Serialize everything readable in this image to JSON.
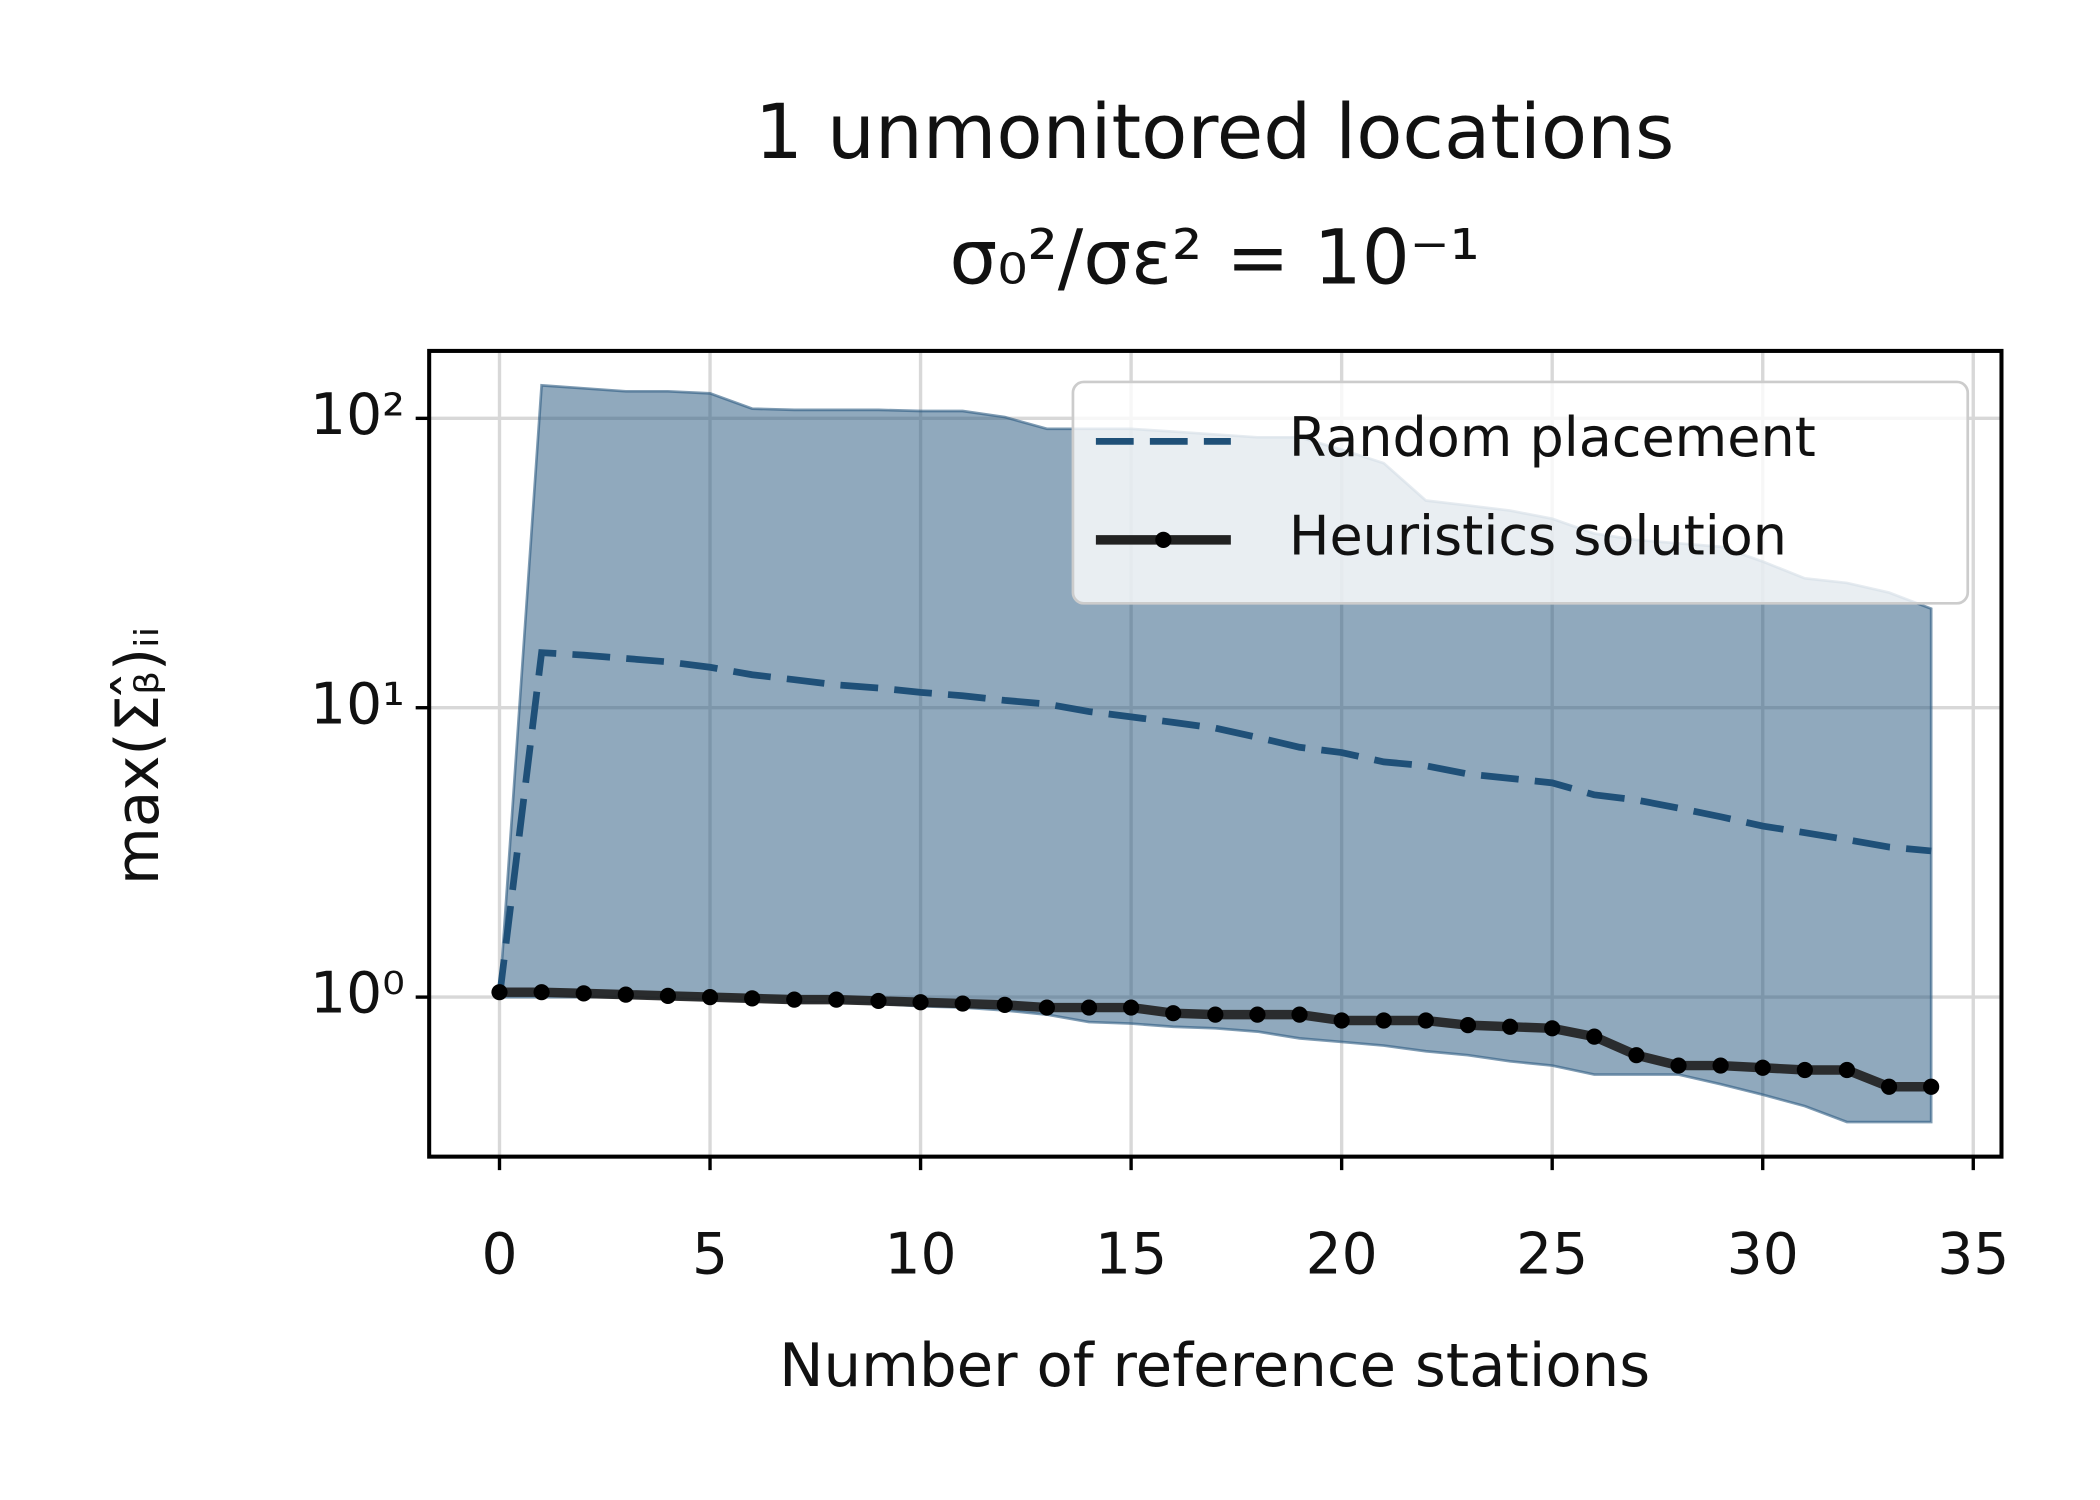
{
  "chart_data": {
    "type": "line",
    "title": "1 unmonitored locations",
    "subtitle": "σ₀²/σε² = 10⁻¹",
    "x_label": "Number of reference stations",
    "y_label": "max(Σᵦ̂)ᵢᵢ",
    "log_y": true,
    "grid": true,
    "legend_position": "upper-right",
    "xlim": [
      -1.67,
      35.67
    ],
    "xticks": [
      0,
      5,
      10,
      15,
      20,
      25,
      30,
      35
    ],
    "ylim": [
      0.281,
      171
    ],
    "yticks": [
      {
        "value": 1,
        "label": "10⁰"
      },
      {
        "value": 10,
        "label": "10¹"
      },
      {
        "value": 100,
        "label": "10²"
      }
    ],
    "x": [
      0,
      1,
      2,
      3,
      4,
      5,
      6,
      7,
      8,
      9,
      10,
      11,
      12,
      13,
      14,
      15,
      16,
      17,
      18,
      19,
      20,
      21,
      22,
      23,
      24,
      25,
      26,
      27,
      28,
      29,
      30,
      31,
      32,
      33,
      34
    ],
    "band": {
      "color": "#2b5a80",
      "upper": [
        1.0,
        130,
        127,
        124,
        124,
        122,
        108,
        107,
        107,
        107,
        106,
        106,
        101,
        92,
        92,
        92,
        90,
        88,
        86,
        86,
        78,
        70,
        52,
        50,
        48,
        45,
        40,
        38,
        37,
        36,
        32,
        28,
        27,
        25,
        22
      ],
      "lower": [
        1.0,
        1.0,
        1.0,
        1.0,
        0.99,
        0.98,
        0.97,
        0.96,
        0.96,
        0.95,
        0.93,
        0.92,
        0.9,
        0.87,
        0.82,
        0.81,
        0.79,
        0.78,
        0.76,
        0.72,
        0.7,
        0.68,
        0.65,
        0.63,
        0.6,
        0.58,
        0.54,
        0.54,
        0.54,
        0.5,
        0.46,
        0.42,
        0.37,
        0.37,
        0.37
      ]
    },
    "series": [
      {
        "name": "Random placement",
        "color": "#1f5078",
        "style": "dashed",
        "values": [
          1.0,
          15.5,
          15.2,
          14.8,
          14.4,
          13.8,
          13,
          12.5,
          12,
          11.7,
          11.3,
          11,
          10.6,
          10.3,
          9.7,
          9.3,
          8.9,
          8.5,
          7.9,
          7.3,
          7.0,
          6.5,
          6.3,
          5.9,
          5.7,
          5.5,
          5.0,
          4.8,
          4.5,
          4.2,
          3.9,
          3.7,
          3.5,
          3.3,
          3.2
        ]
      },
      {
        "name": "Heuristics solution",
        "color": "#222222",
        "style": "solid-markers",
        "values": [
          1.04,
          1.04,
          1.03,
          1.02,
          1.01,
          1.0,
          0.99,
          0.98,
          0.98,
          0.97,
          0.96,
          0.95,
          0.94,
          0.92,
          0.92,
          0.92,
          0.88,
          0.87,
          0.87,
          0.87,
          0.83,
          0.83,
          0.83,
          0.8,
          0.79,
          0.78,
          0.73,
          0.63,
          0.58,
          0.58,
          0.57,
          0.56,
          0.56,
          0.49,
          0.49
        ]
      }
    ]
  }
}
